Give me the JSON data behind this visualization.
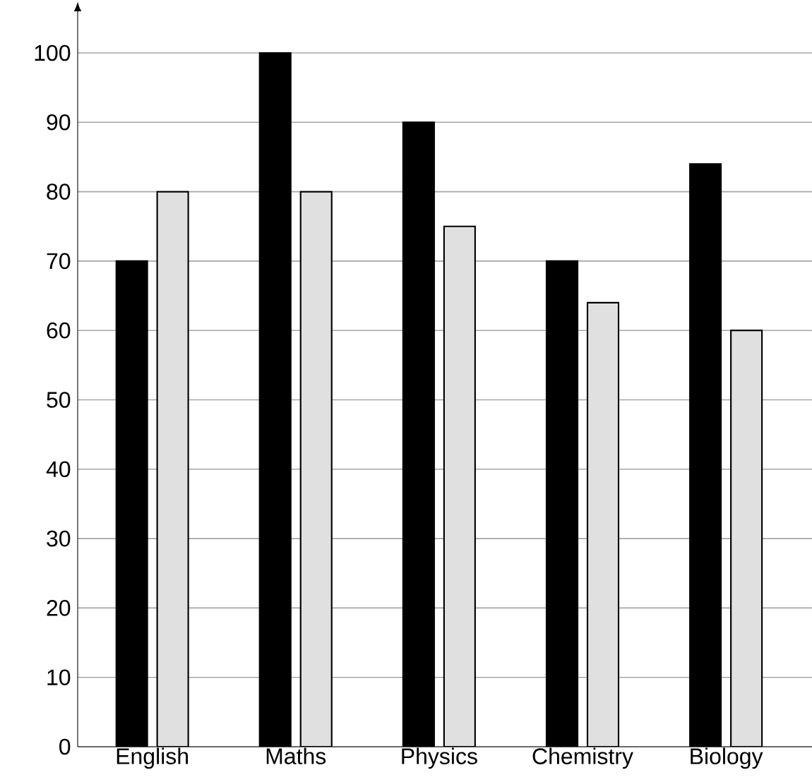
{
  "chart_data": {
    "type": "bar",
    "categories": [
      "English",
      "Maths",
      "Physics",
      "Chemistry",
      "Biology"
    ],
    "series": [
      {
        "color": "#000000",
        "values": [
          70,
          100,
          90,
          70,
          84
        ]
      },
      {
        "color": "#e0e0e0",
        "values": [
          80,
          80,
          75,
          64,
          60
        ]
      }
    ],
    "ylim": [
      0,
      106
    ],
    "yticks": [
      0,
      10,
      20,
      30,
      40,
      50,
      60,
      70,
      80,
      90,
      100
    ],
    "grid": "y"
  }
}
